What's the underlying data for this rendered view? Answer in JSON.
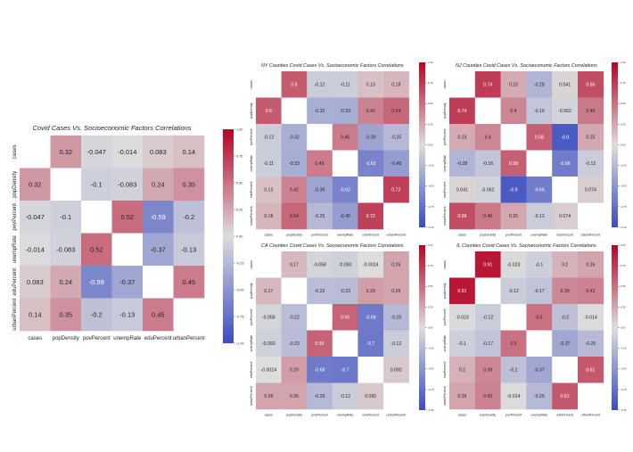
{
  "colors": {
    "neg": "#3b4cc0",
    "mid": "#dddddd",
    "pos": "#b40426",
    "diag": "#ffffff"
  },
  "chart_data": [
    {
      "type": "heatmap",
      "title": "Covid Cases Vs. Socioeconomic Factors Correlations",
      "rows": [
        "cases",
        "popDensity",
        "povPercent",
        "unempRate",
        "eduPercent",
        "urbanPercent"
      ],
      "columns": [
        "cases",
        "popDensity",
        "povPercent",
        "unempRate",
        "eduPercent",
        "urbanPercent"
      ],
      "values": [
        [
          null,
          0.32,
          -0.047,
          -0.014,
          0.083,
          0.14
        ],
        [
          0.32,
          null,
          -0.1,
          -0.083,
          0.24,
          0.35
        ],
        [
          -0.047,
          -0.1,
          null,
          0.52,
          -0.59,
          -0.2
        ],
        [
          -0.014,
          -0.083,
          0.52,
          null,
          -0.37,
          -0.13
        ],
        [
          0.083,
          0.24,
          -0.59,
          -0.37,
          null,
          0.45
        ],
        [
          0.14,
          0.35,
          -0.2,
          -0.13,
          0.45,
          null
        ]
      ],
      "colorbar": {
        "ticks": [
          "1.00",
          "0.75",
          "0.50",
          "0.25",
          "0.00",
          "-0.25",
          "-0.50",
          "-0.75",
          "-1.00"
        ],
        "range": [
          -1,
          1
        ]
      }
    },
    {
      "type": "heatmap",
      "title": "NY Counties Covid Cases Vs. Socioeconomic Factors Correlations",
      "rows": [
        "cases",
        "popDensity",
        "povPercent",
        "unempRate",
        "eduPercent",
        "urbanPercent"
      ],
      "columns": [
        "cases",
        "popDensity",
        "povPercent",
        "unempRate",
        "eduPercent",
        "urbanPercent"
      ],
      "values": [
        [
          null,
          0.6,
          -0.12,
          -0.11,
          0.13,
          0.18
        ],
        [
          0.6,
          null,
          -0.32,
          -0.33,
          0.42,
          0.54
        ],
        [
          -0.12,
          -0.32,
          null,
          0.45,
          -0.39,
          -0.25
        ],
        [
          -0.11,
          -0.33,
          0.45,
          null,
          -0.62,
          -0.45
        ],
        [
          0.13,
          0.42,
          -0.39,
          -0.62,
          null,
          0.72
        ],
        [
          0.18,
          0.54,
          -0.25,
          -0.45,
          0.72,
          null
        ]
      ],
      "colorbar": {
        "ticks": [
          "1.00",
          "0.75",
          "0.50",
          "0.25",
          "0.00",
          "-0.25",
          "-0.50",
          "-0.75",
          "-1.00"
        ],
        "range": [
          -1,
          1
        ]
      }
    },
    {
      "type": "heatmap",
      "title": "NJ Counties Covid Cases Vs. Socioeconomic Factors Correlations",
      "rows": [
        "cases",
        "popDensity",
        "povPercent",
        "unempRate",
        "eduPercent",
        "urbanPercent"
      ],
      "columns": [
        "cases",
        "popDensity",
        "povPercent",
        "unempRate",
        "eduPercent",
        "urbanPercent"
      ],
      "values": [
        [
          null,
          0.74,
          0.23,
          -0.28,
          0.041,
          0.66
        ],
        [
          0.74,
          null,
          0.4,
          -0.16,
          -0.062,
          0.46
        ],
        [
          0.23,
          0.4,
          null,
          0.58,
          -0.9,
          0.25
        ],
        [
          -0.28,
          -0.16,
          0.58,
          null,
          -0.66,
          -0.12
        ],
        [
          0.041,
          -0.062,
          -0.9,
          -0.66,
          null,
          0.074
        ],
        [
          0.66,
          0.46,
          0.25,
          -0.12,
          0.074,
          null
        ]
      ],
      "colorbar": {
        "ticks": [
          "1.00",
          "0.75",
          "0.50",
          "0.25",
          "0.00",
          "-0.25",
          "-0.50",
          "-0.75",
          "-1.00"
        ],
        "range": [
          -1,
          1
        ]
      }
    },
    {
      "type": "heatmap",
      "title": "CA Counties Covid Cases Vs. Socioeconomic Factors Correlations",
      "rows": [
        "cases",
        "popDensity",
        "povPercent",
        "unempRate",
        "eduPercent",
        "urbanPercent"
      ],
      "columns": [
        "cases",
        "popDensity",
        "povPercent",
        "unempRate",
        "eduPercent",
        "urbanPercent"
      ],
      "values": [
        [
          null,
          0.17,
          -0.058,
          -0.093,
          -0.0024,
          0.26
        ],
        [
          0.17,
          null,
          -0.22,
          -0.23,
          0.29,
          0.26
        ],
        [
          -0.058,
          -0.22,
          null,
          0.56,
          -0.68,
          -0.25
        ],
        [
          -0.093,
          -0.23,
          0.56,
          null,
          -0.7,
          -0.12
        ],
        [
          -0.0024,
          0.29,
          -0.68,
          -0.7,
          null,
          0.092
        ],
        [
          0.26,
          0.26,
          -0.25,
          -0.12,
          0.092,
          null
        ]
      ],
      "colorbar": {
        "ticks": [
          "1.00",
          "0.75",
          "0.50",
          "0.25",
          "0.00",
          "-0.25",
          "-0.50",
          "-0.75",
          "-1.00"
        ],
        "range": [
          -1,
          1
        ]
      }
    },
    {
      "type": "heatmap",
      "title": "IL Counties Covid Cases Vs. Socioeconomic Factors Correlations",
      "rows": [
        "cases",
        "popDensity",
        "povPercent",
        "unempRate",
        "eduPercent",
        "urbanPercent"
      ],
      "columns": [
        "cases",
        "popDensity",
        "povPercent",
        "unempRate",
        "eduPercent",
        "urbanPercent"
      ],
      "values": [
        [
          null,
          0.91,
          -0.023,
          -0.1,
          0.2,
          0.26
        ],
        [
          0.91,
          null,
          -0.12,
          -0.17,
          0.39,
          0.42
        ],
        [
          -0.023,
          -0.12,
          null,
          0.5,
          -0.2,
          -0.014
        ],
        [
          -0.1,
          -0.17,
          0.5,
          null,
          -0.37,
          -0.25
        ],
        [
          0.2,
          0.39,
          -0.2,
          -0.37,
          null,
          0.61
        ],
        [
          0.26,
          0.42,
          -0.014,
          -0.25,
          0.61,
          null
        ]
      ],
      "colorbar": {
        "ticks": [
          "1.00",
          "0.75",
          "0.50",
          "0.25",
          "0.00",
          "-0.25",
          "-0.50",
          "-0.75",
          "-1.00"
        ],
        "range": [
          -1,
          1
        ]
      }
    }
  ]
}
